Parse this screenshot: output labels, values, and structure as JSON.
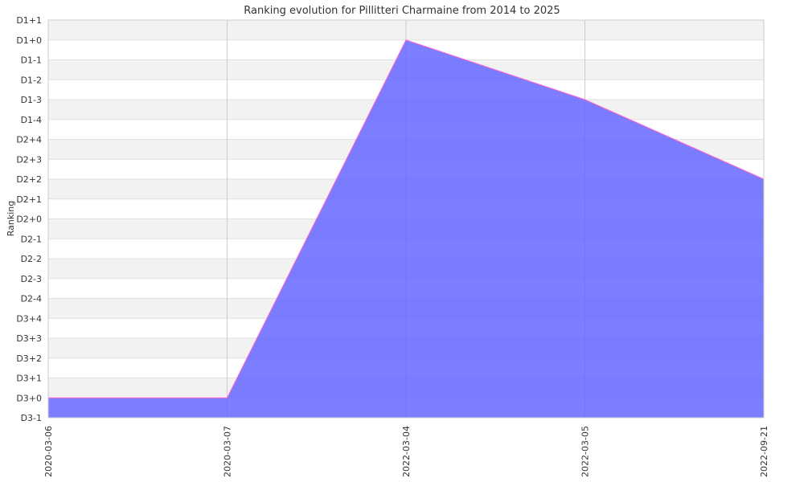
{
  "chart_data": {
    "type": "area",
    "title": "Ranking evolution for Pillitteri Charmaine from 2014 to 2025",
    "xlabel": "",
    "ylabel": "Ranking",
    "y_categories": [
      "D3-1",
      "D3+0",
      "D3+1",
      "D3+2",
      "D3+3",
      "D3+4",
      "D2-4",
      "D2-3",
      "D2-2",
      "D2-1",
      "D2+0",
      "D2+1",
      "D2+2",
      "D2+3",
      "D2+4",
      "D1-4",
      "D1-3",
      "D1-2",
      "D1-1",
      "D1+0",
      "D1+1"
    ],
    "x": [
      "2020-03-06",
      "2020-03-07",
      "2022-03-04",
      "2022-03-05",
      "2022-09-21"
    ],
    "series": [
      {
        "values": [
          "D3+0",
          "D3+0",
          "D1+0",
          "D1-3",
          "D2+2"
        ]
      }
    ],
    "grid": true,
    "legend": "none",
    "colors": {
      "fill": "#6666ff",
      "line": "#ff66cc",
      "band": "#f2f2f2",
      "grid": "#cccccc",
      "axis": "#999999"
    }
  }
}
